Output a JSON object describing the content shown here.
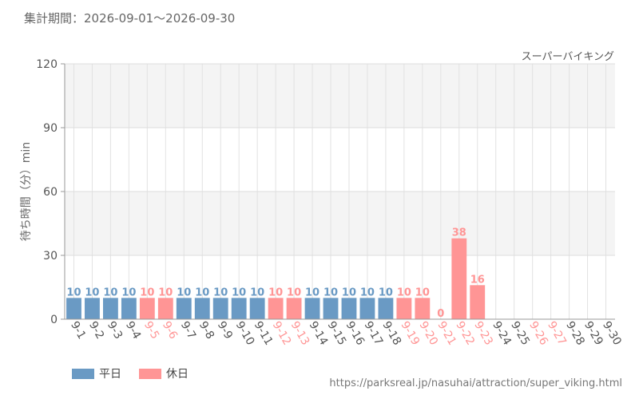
{
  "period_label": "集計期間：2026-09-01～2026-09-30",
  "attraction_name": "スーパーバイキング",
  "source_url": "https://parksreal.jp/nasuhai/attraction/super_viking.html",
  "legend": {
    "weekday": "平日",
    "holiday": "休日"
  },
  "colors": {
    "weekday": "#6a9ac4",
    "holiday": "#ff9595",
    "axis_text": "#555555",
    "band": "#f4f4f4"
  },
  "chart_data": {
    "type": "bar",
    "ylabel": "待ち時間（分）min",
    "ylim": [
      0,
      120
    ],
    "yticks": [
      0,
      30,
      60,
      90,
      120
    ],
    "grid": true,
    "legend_position": "bottom-left",
    "categories": [
      "9-1",
      "9-2",
      "9-3",
      "9-4",
      "9-5",
      "9-6",
      "9-7",
      "9-8",
      "9-9",
      "9-10",
      "9-11",
      "9-12",
      "9-13",
      "9-14",
      "9-15",
      "9-16",
      "9-17",
      "9-18",
      "9-19",
      "9-20",
      "9-21",
      "9-22",
      "9-23",
      "9-24",
      "9-25",
      "9-26",
      "9-27",
      "9-28",
      "9-29",
      "9-30"
    ],
    "day_type": [
      "weekday",
      "weekday",
      "weekday",
      "weekday",
      "holiday",
      "holiday",
      "weekday",
      "weekday",
      "weekday",
      "weekday",
      "weekday",
      "holiday",
      "holiday",
      "weekday",
      "weekday",
      "weekday",
      "weekday",
      "weekday",
      "holiday",
      "holiday",
      "holiday",
      "holiday",
      "holiday",
      "weekday",
      "weekday",
      "holiday",
      "holiday",
      "weekday",
      "weekday",
      "weekday"
    ],
    "values": [
      10,
      10,
      10,
      10,
      10,
      10,
      10,
      10,
      10,
      10,
      10,
      10,
      10,
      10,
      10,
      10,
      10,
      10,
      10,
      10,
      0,
      38,
      16,
      null,
      null,
      null,
      null,
      null,
      null,
      null
    ]
  }
}
